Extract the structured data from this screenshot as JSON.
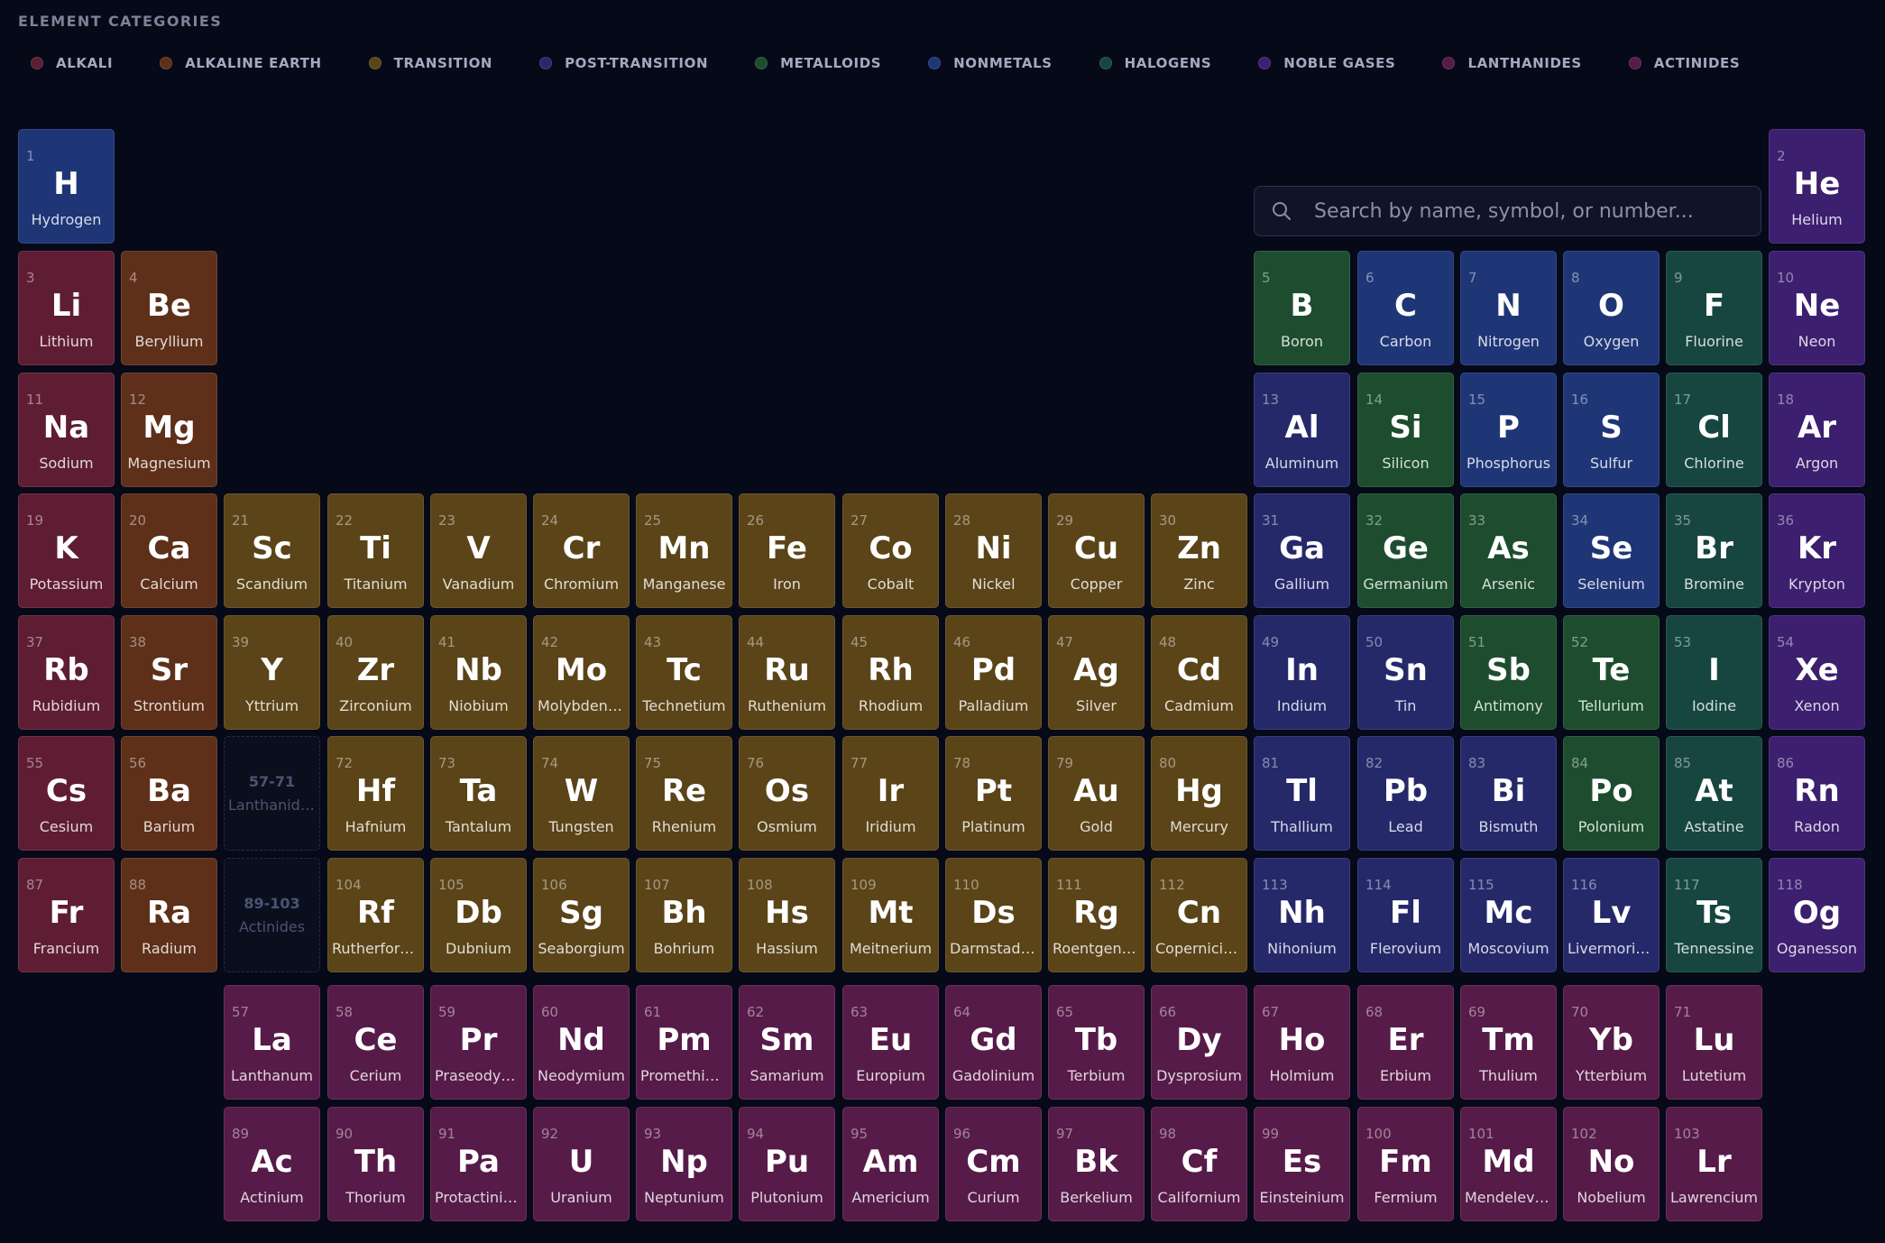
{
  "page": {
    "title": "ELEMENT CATEGORIES"
  },
  "legend": [
    {
      "label": "ALKALI",
      "color": "#5e1d33"
    },
    {
      "label": "ALKALINE EARTH",
      "color": "#5e2f19"
    },
    {
      "label": "TRANSITION",
      "color": "#5a4418"
    },
    {
      "label": "POST-TRANSITION",
      "color": "#25296a"
    },
    {
      "label": "METALLOIDS",
      "color": "#1d4d2e"
    },
    {
      "label": "NONMETALS",
      "color": "#1e3576"
    },
    {
      "label": "HALOGENS",
      "color": "#16463f"
    },
    {
      "label": "NOBLE GASES",
      "color": "#3c1f6f"
    },
    {
      "label": "LANTHANIDES",
      "color": "#561b48"
    },
    {
      "label": "ACTINIDES",
      "color": "#561b48"
    }
  ],
  "category_colors": {
    "alkali": "#5e1d33",
    "alkaline": "#5e2f19",
    "transition": "#5a4418",
    "post": "#25296a",
    "metalloid": "#1d4d2e",
    "nonmetal": "#1e3576",
    "halogen": "#16463f",
    "noble": "#3c1f6f",
    "lanthanide": "#561b48",
    "actinide": "#561b48"
  },
  "search": {
    "placeholder": "Search by name, symbol, or number...",
    "value": ""
  },
  "placeholders": [
    {
      "range": "57-71",
      "label": "Lanthanides"
    },
    {
      "range": "89-103",
      "label": "Actinides"
    }
  ],
  "elements": [
    {
      "number": "1",
      "symbol": "H",
      "name": "Hydrogen",
      "category": "nonmetal"
    },
    {
      "number": "2",
      "symbol": "He",
      "name": "Helium",
      "category": "noble"
    },
    {
      "number": "3",
      "symbol": "Li",
      "name": "Lithium",
      "category": "alkali"
    },
    {
      "number": "4",
      "symbol": "Be",
      "name": "Beryllium",
      "category": "alkaline"
    },
    {
      "number": "5",
      "symbol": "B",
      "name": "Boron",
      "category": "metalloid"
    },
    {
      "number": "6",
      "symbol": "C",
      "name": "Carbon",
      "category": "nonmetal"
    },
    {
      "number": "7",
      "symbol": "N",
      "name": "Nitrogen",
      "category": "nonmetal"
    },
    {
      "number": "8",
      "symbol": "O",
      "name": "Oxygen",
      "category": "nonmetal"
    },
    {
      "number": "9",
      "symbol": "F",
      "name": "Fluorine",
      "category": "halogen"
    },
    {
      "number": "10",
      "symbol": "Ne",
      "name": "Neon",
      "category": "noble"
    },
    {
      "number": "11",
      "symbol": "Na",
      "name": "Sodium",
      "category": "alkali"
    },
    {
      "number": "12",
      "symbol": "Mg",
      "name": "Magnesium",
      "category": "alkaline"
    },
    {
      "number": "13",
      "symbol": "Al",
      "name": "Aluminum",
      "category": "post"
    },
    {
      "number": "14",
      "symbol": "Si",
      "name": "Silicon",
      "category": "metalloid"
    },
    {
      "number": "15",
      "symbol": "P",
      "name": "Phosphorus",
      "category": "nonmetal"
    },
    {
      "number": "16",
      "symbol": "S",
      "name": "Sulfur",
      "category": "nonmetal"
    },
    {
      "number": "17",
      "symbol": "Cl",
      "name": "Chlorine",
      "category": "halogen"
    },
    {
      "number": "18",
      "symbol": "Ar",
      "name": "Argon",
      "category": "noble"
    },
    {
      "number": "19",
      "symbol": "K",
      "name": "Potassium",
      "category": "alkali"
    },
    {
      "number": "20",
      "symbol": "Ca",
      "name": "Calcium",
      "category": "alkaline"
    },
    {
      "number": "21",
      "symbol": "Sc",
      "name": "Scandium",
      "category": "transition"
    },
    {
      "number": "22",
      "symbol": "Ti",
      "name": "Titanium",
      "category": "transition"
    },
    {
      "number": "23",
      "symbol": "V",
      "name": "Vanadium",
      "category": "transition"
    },
    {
      "number": "24",
      "symbol": "Cr",
      "name": "Chromium",
      "category": "transition"
    },
    {
      "number": "25",
      "symbol": "Mn",
      "name": "Manganese",
      "category": "transition"
    },
    {
      "number": "26",
      "symbol": "Fe",
      "name": "Iron",
      "category": "transition"
    },
    {
      "number": "27",
      "symbol": "Co",
      "name": "Cobalt",
      "category": "transition"
    },
    {
      "number": "28",
      "symbol": "Ni",
      "name": "Nickel",
      "category": "transition"
    },
    {
      "number": "29",
      "symbol": "Cu",
      "name": "Copper",
      "category": "transition"
    },
    {
      "number": "30",
      "symbol": "Zn",
      "name": "Zinc",
      "category": "transition"
    },
    {
      "number": "31",
      "symbol": "Ga",
      "name": "Gallium",
      "category": "post"
    },
    {
      "number": "32",
      "symbol": "Ge",
      "name": "Germanium",
      "category": "metalloid"
    },
    {
      "number": "33",
      "symbol": "As",
      "name": "Arsenic",
      "category": "metalloid"
    },
    {
      "number": "34",
      "symbol": "Se",
      "name": "Selenium",
      "category": "nonmetal"
    },
    {
      "number": "35",
      "symbol": "Br",
      "name": "Bromine",
      "category": "halogen"
    },
    {
      "number": "36",
      "symbol": "Kr",
      "name": "Krypton",
      "category": "noble"
    },
    {
      "number": "37",
      "symbol": "Rb",
      "name": "Rubidium",
      "category": "alkali"
    },
    {
      "number": "38",
      "symbol": "Sr",
      "name": "Strontium",
      "category": "alkaline"
    },
    {
      "number": "39",
      "symbol": "Y",
      "name": "Yttrium",
      "category": "transition"
    },
    {
      "number": "40",
      "symbol": "Zr",
      "name": "Zirconium",
      "category": "transition"
    },
    {
      "number": "41",
      "symbol": "Nb",
      "name": "Niobium",
      "category": "transition"
    },
    {
      "number": "42",
      "symbol": "Mo",
      "name": "Molybdenum",
      "category": "transition"
    },
    {
      "number": "43",
      "symbol": "Tc",
      "name": "Technetium",
      "category": "transition"
    },
    {
      "number": "44",
      "symbol": "Ru",
      "name": "Ruthenium",
      "category": "transition"
    },
    {
      "number": "45",
      "symbol": "Rh",
      "name": "Rhodium",
      "category": "transition"
    },
    {
      "number": "46",
      "symbol": "Pd",
      "name": "Palladium",
      "category": "transition"
    },
    {
      "number": "47",
      "symbol": "Ag",
      "name": "Silver",
      "category": "transition"
    },
    {
      "number": "48",
      "symbol": "Cd",
      "name": "Cadmium",
      "category": "transition"
    },
    {
      "number": "49",
      "symbol": "In",
      "name": "Indium",
      "category": "post"
    },
    {
      "number": "50",
      "symbol": "Sn",
      "name": "Tin",
      "category": "post"
    },
    {
      "number": "51",
      "symbol": "Sb",
      "name": "Antimony",
      "category": "metalloid"
    },
    {
      "number": "52",
      "symbol": "Te",
      "name": "Tellurium",
      "category": "metalloid"
    },
    {
      "number": "53",
      "symbol": "I",
      "name": "Iodine",
      "category": "halogen"
    },
    {
      "number": "54",
      "symbol": "Xe",
      "name": "Xenon",
      "category": "noble"
    },
    {
      "number": "55",
      "symbol": "Cs",
      "name": "Cesium",
      "category": "alkali"
    },
    {
      "number": "56",
      "symbol": "Ba",
      "name": "Barium",
      "category": "alkaline"
    },
    {
      "number": "72",
      "symbol": "Hf",
      "name": "Hafnium",
      "category": "transition"
    },
    {
      "number": "73",
      "symbol": "Ta",
      "name": "Tantalum",
      "category": "transition"
    },
    {
      "number": "74",
      "symbol": "W",
      "name": "Tungsten",
      "category": "transition"
    },
    {
      "number": "75",
      "symbol": "Re",
      "name": "Rhenium",
      "category": "transition"
    },
    {
      "number": "76",
      "symbol": "Os",
      "name": "Osmium",
      "category": "transition"
    },
    {
      "number": "77",
      "symbol": "Ir",
      "name": "Iridium",
      "category": "transition"
    },
    {
      "number": "78",
      "symbol": "Pt",
      "name": "Platinum",
      "category": "transition"
    },
    {
      "number": "79",
      "symbol": "Au",
      "name": "Gold",
      "category": "transition"
    },
    {
      "number": "80",
      "symbol": "Hg",
      "name": "Mercury",
      "category": "transition"
    },
    {
      "number": "81",
      "symbol": "Tl",
      "name": "Thallium",
      "category": "post"
    },
    {
      "number": "82",
      "symbol": "Pb",
      "name": "Lead",
      "category": "post"
    },
    {
      "number": "83",
      "symbol": "Bi",
      "name": "Bismuth",
      "category": "post"
    },
    {
      "number": "84",
      "symbol": "Po",
      "name": "Polonium",
      "category": "metalloid"
    },
    {
      "number": "85",
      "symbol": "At",
      "name": "Astatine",
      "category": "halogen"
    },
    {
      "number": "86",
      "symbol": "Rn",
      "name": "Radon",
      "category": "noble"
    },
    {
      "number": "87",
      "symbol": "Fr",
      "name": "Francium",
      "category": "alkali"
    },
    {
      "number": "88",
      "symbol": "Ra",
      "name": "Radium",
      "category": "alkaline"
    },
    {
      "number": "104",
      "symbol": "Rf",
      "name": "Rutherfordium",
      "category": "transition"
    },
    {
      "number": "105",
      "symbol": "Db",
      "name": "Dubnium",
      "category": "transition"
    },
    {
      "number": "106",
      "symbol": "Sg",
      "name": "Seaborgium",
      "category": "transition"
    },
    {
      "number": "107",
      "symbol": "Bh",
      "name": "Bohrium",
      "category": "transition"
    },
    {
      "number": "108",
      "symbol": "Hs",
      "name": "Hassium",
      "category": "transition"
    },
    {
      "number": "109",
      "symbol": "Mt",
      "name": "Meitnerium",
      "category": "transition"
    },
    {
      "number": "110",
      "symbol": "Ds",
      "name": "Darmstadtium",
      "category": "transition"
    },
    {
      "number": "111",
      "symbol": "Rg",
      "name": "Roentgenium",
      "category": "transition"
    },
    {
      "number": "112",
      "symbol": "Cn",
      "name": "Copernicium",
      "category": "transition"
    },
    {
      "number": "113",
      "symbol": "Nh",
      "name": "Nihonium",
      "category": "post"
    },
    {
      "number": "114",
      "symbol": "Fl",
      "name": "Flerovium",
      "category": "post"
    },
    {
      "number": "115",
      "symbol": "Mc",
      "name": "Moscovium",
      "category": "post"
    },
    {
      "number": "116",
      "symbol": "Lv",
      "name": "Livermorium",
      "category": "post"
    },
    {
      "number": "117",
      "symbol": "Ts",
      "name": "Tennessine",
      "category": "halogen"
    },
    {
      "number": "118",
      "symbol": "Og",
      "name": "Oganesson",
      "category": "noble"
    },
    {
      "number": "57",
      "symbol": "La",
      "name": "Lanthanum",
      "category": "lanthanide"
    },
    {
      "number": "58",
      "symbol": "Ce",
      "name": "Cerium",
      "category": "lanthanide"
    },
    {
      "number": "59",
      "symbol": "Pr",
      "name": "Praseodymium",
      "category": "lanthanide"
    },
    {
      "number": "60",
      "symbol": "Nd",
      "name": "Neodymium",
      "category": "lanthanide"
    },
    {
      "number": "61",
      "symbol": "Pm",
      "name": "Promethium",
      "category": "lanthanide"
    },
    {
      "number": "62",
      "symbol": "Sm",
      "name": "Samarium",
      "category": "lanthanide"
    },
    {
      "number": "63",
      "symbol": "Eu",
      "name": "Europium",
      "category": "lanthanide"
    },
    {
      "number": "64",
      "symbol": "Gd",
      "name": "Gadolinium",
      "category": "lanthanide"
    },
    {
      "number": "65",
      "symbol": "Tb",
      "name": "Terbium",
      "category": "lanthanide"
    },
    {
      "number": "66",
      "symbol": "Dy",
      "name": "Dysprosium",
      "category": "lanthanide"
    },
    {
      "number": "67",
      "symbol": "Ho",
      "name": "Holmium",
      "category": "lanthanide"
    },
    {
      "number": "68",
      "symbol": "Er",
      "name": "Erbium",
      "category": "lanthanide"
    },
    {
      "number": "69",
      "symbol": "Tm",
      "name": "Thulium",
      "category": "lanthanide"
    },
    {
      "number": "70",
      "symbol": "Yb",
      "name": "Ytterbium",
      "category": "lanthanide"
    },
    {
      "number": "71",
      "symbol": "Lu",
      "name": "Lutetium",
      "category": "lanthanide"
    },
    {
      "number": "89",
      "symbol": "Ac",
      "name": "Actinium",
      "category": "actinide"
    },
    {
      "number": "90",
      "symbol": "Th",
      "name": "Thorium",
      "category": "actinide"
    },
    {
      "number": "91",
      "symbol": "Pa",
      "name": "Protactinium",
      "category": "actinide"
    },
    {
      "number": "92",
      "symbol": "U",
      "name": "Uranium",
      "category": "actinide"
    },
    {
      "number": "93",
      "symbol": "Np",
      "name": "Neptunium",
      "category": "actinide"
    },
    {
      "number": "94",
      "symbol": "Pu",
      "name": "Plutonium",
      "category": "actinide"
    },
    {
      "number": "95",
      "symbol": "Am",
      "name": "Americium",
      "category": "actinide"
    },
    {
      "number": "96",
      "symbol": "Cm",
      "name": "Curium",
      "category": "actinide"
    },
    {
      "number": "97",
      "symbol": "Bk",
      "name": "Berkelium",
      "category": "actinide"
    },
    {
      "number": "98",
      "symbol": "Cf",
      "name": "Californium",
      "category": "actinide"
    },
    {
      "number": "99",
      "symbol": "Es",
      "name": "Einsteinium",
      "category": "actinide"
    },
    {
      "number": "100",
      "symbol": "Fm",
      "name": "Fermium",
      "category": "actinide"
    },
    {
      "number": "101",
      "symbol": "Md",
      "name": "Mendelevium",
      "category": "actinide"
    },
    {
      "number": "102",
      "symbol": "No",
      "name": "Nobelium",
      "category": "actinide"
    },
    {
      "number": "103",
      "symbol": "Lr",
      "name": "Lawrencium",
      "category": "actinide"
    }
  ]
}
